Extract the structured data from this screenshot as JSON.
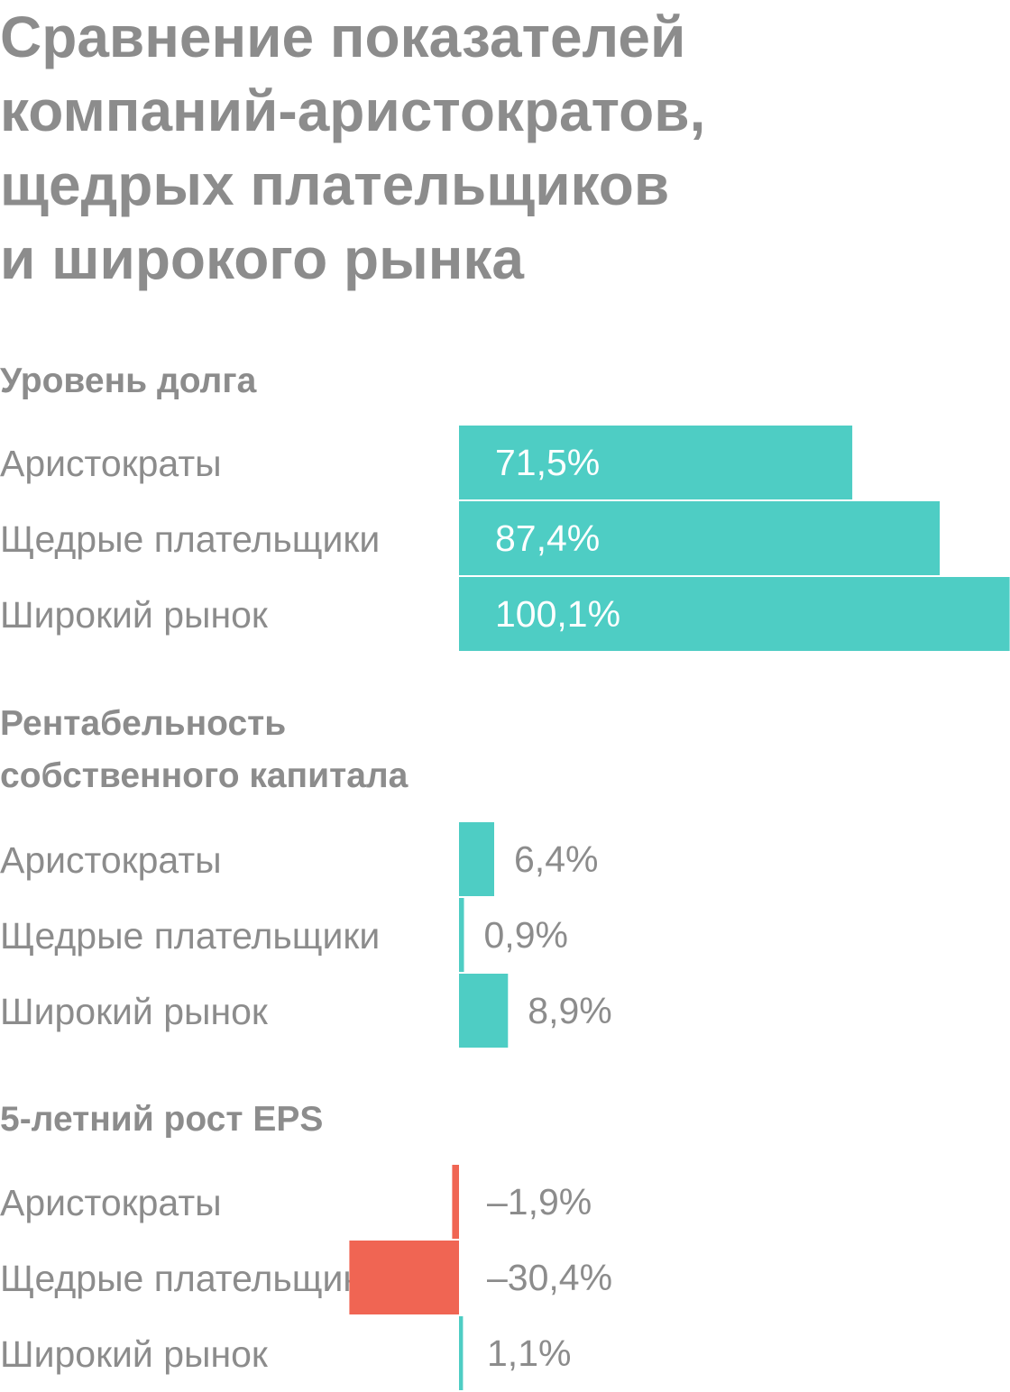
{
  "title_lines": [
    "Сравнение показателей",
    "компаний-аристократов,",
    "щедрых плательщиков",
    "и широкого рынка"
  ],
  "colors": {
    "positive": "#4ecdc4",
    "negative": "#f06553",
    "text": "#8c8c8c",
    "label_in_bar": "#ffffff"
  },
  "chart_data": [
    {
      "type": "bar",
      "title_lines": [
        "Уровень долга"
      ],
      "categories": [
        "Аристократы",
        "Щедрые плательщики",
        "Широкий рынок"
      ],
      "values": [
        71.5,
        87.4,
        100.1
      ],
      "labels": [
        "71,5%",
        "87,4%",
        "100,1%"
      ],
      "orientation": "horizontal"
    },
    {
      "type": "bar",
      "title_lines": [
        "Рентабельность",
        "собственного капитала"
      ],
      "categories": [
        "Аристократы",
        "Щедрые плательщики",
        "Широкий рынок"
      ],
      "values": [
        6.4,
        0.9,
        8.9
      ],
      "labels": [
        "6,4%",
        "0,9%",
        "8,9%"
      ],
      "orientation": "horizontal"
    },
    {
      "type": "bar",
      "title_lines": [
        "5-летний рост EPS"
      ],
      "categories": [
        "Аристократы",
        "Щедрые плательщики",
        "Широкий рынок"
      ],
      "values": [
        -1.9,
        -30.4,
        1.1
      ],
      "labels": [
        "–1,9%",
        "–30,4%",
        "1,1%"
      ],
      "orientation": "horizontal"
    }
  ]
}
